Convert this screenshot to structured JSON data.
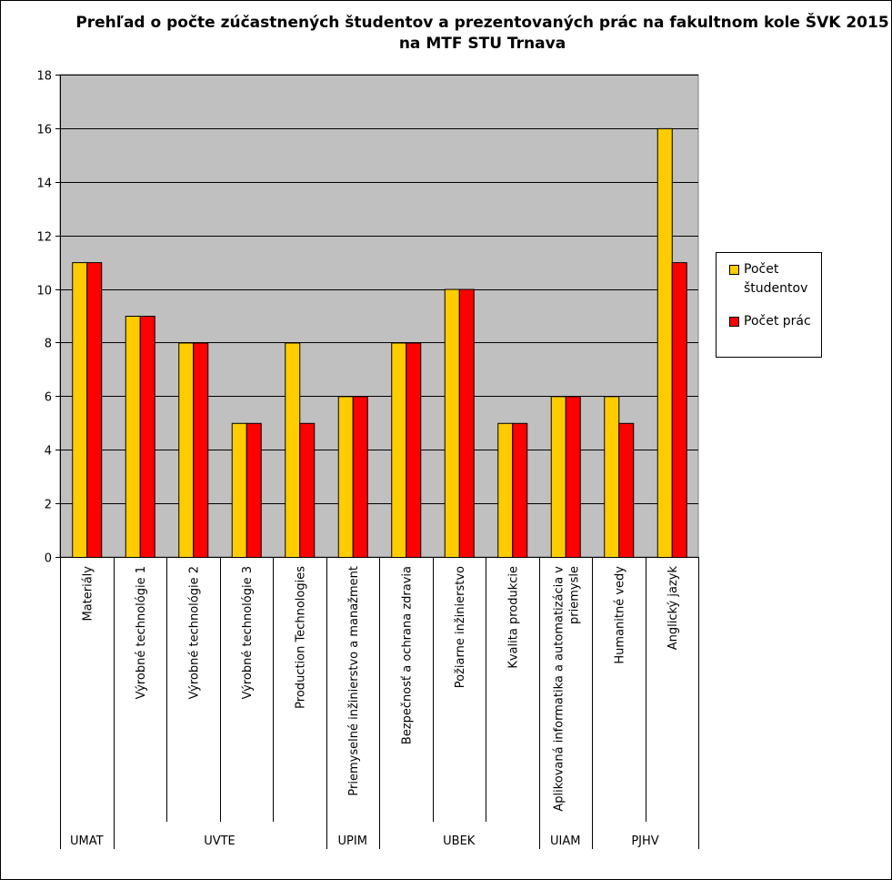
{
  "chart_data": {
    "type": "bar",
    "title_lines": [
      "Prehľad o počte zúčastnených študentov a prezentovaných prác na fakultnom kole ŠVK 2015",
      "na MTF STU Trnava"
    ],
    "categories": [
      "Materiály",
      "Výrobné technológie 1",
      "Výrobné technológie 2",
      "Výrobné technológie 3",
      "Production Technologies",
      "Priemyselné inžinierstvo a manažment",
      "Bezpečnosť a ochrana zdravia",
      "Požiarne inžinierstvo",
      "Kvalita produkcie",
      "Aplikovaná informatika a automatizácia v priemysle",
      "Humanitné vedy",
      "Anglický jazyk"
    ],
    "category_lines": [
      [
        "Materiály"
      ],
      [
        "Výrobné technológie 1"
      ],
      [
        "Výrobné technológie 2"
      ],
      [
        "Výrobné technológie 3"
      ],
      [
        "Production Technologies"
      ],
      [
        "Priemyselné inžinierstvo a manažment"
      ],
      [
        "Bezpečnosť a ochrana zdravia"
      ],
      [
        "Požiarne inžinierstvo"
      ],
      [
        "Kvalita produkcie"
      ],
      [
        "Aplikovaná informatika a automatizácia v",
        "priemysle"
      ],
      [
        "Humanitné vedy"
      ],
      [
        "Anglický jazyk"
      ]
    ],
    "groups": [
      {
        "label": "UMAT",
        "start": 0,
        "count": 1
      },
      {
        "label": "UVTE",
        "start": 1,
        "count": 4
      },
      {
        "label": "UPIM",
        "start": 5,
        "count": 1
      },
      {
        "label": "UBEK",
        "start": 6,
        "count": 3
      },
      {
        "label": "UIAM",
        "start": 9,
        "count": 1
      },
      {
        "label": "PJHV",
        "start": 10,
        "count": 2
      }
    ],
    "series": [
      {
        "name": "Počet študentov",
        "color": "#FFCC00",
        "values": [
          11,
          9,
          8,
          5,
          8,
          6,
          8,
          10,
          5,
          6,
          6,
          16
        ]
      },
      {
        "name": "Počet prác",
        "color": "#FF0000",
        "values": [
          11,
          9,
          8,
          5,
          5,
          6,
          8,
          10,
          5,
          6,
          5,
          11
        ]
      }
    ],
    "ylim": [
      0,
      18
    ],
    "yticks": [
      0,
      2,
      4,
      6,
      8,
      10,
      12,
      14,
      16,
      18
    ],
    "grid": true,
    "legend_position": "right",
    "plot_background": "#C0C0C0"
  }
}
